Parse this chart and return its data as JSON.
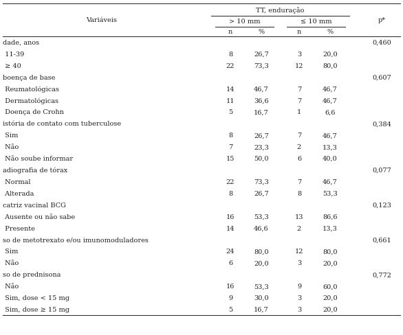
{
  "col_var_label": "Variáveis",
  "col_tt_label": "TT, enduração",
  "col_g1_label": "> 10 mm",
  "col_g2_label": "≤ 10 mm",
  "col_p_label": "p*",
  "col_sub": [
    "n",
    "%",
    "n",
    "%"
  ],
  "rows": [
    {
      "label": "dade, anos",
      "indent": false,
      "n1": "",
      "pct1": "",
      "n2": "",
      "pct2": "",
      "p": "0,460"
    },
    {
      "label": " 11-39",
      "indent": true,
      "n1": "8",
      "pct1": "26,7",
      "n2": "3",
      "pct2": "20,0",
      "p": ""
    },
    {
      "label": " ≥ 40",
      "indent": true,
      "n1": "22",
      "pct1": "73,3",
      "n2": "12",
      "pct2": "80,0",
      "p": ""
    },
    {
      "label": "boença de base",
      "indent": false,
      "n1": "",
      "pct1": "",
      "n2": "",
      "pct2": "",
      "p": "0,607"
    },
    {
      "label": " Reumatológicas",
      "indent": true,
      "n1": "14",
      "pct1": "46,7",
      "n2": "7",
      "pct2": "46,7",
      "p": ""
    },
    {
      "label": " Dermatológicas",
      "indent": true,
      "n1": "11",
      "pct1": "36,6",
      "n2": "7",
      "pct2": "46,7",
      "p": ""
    },
    {
      "label": " Doença de Crohn",
      "indent": true,
      "n1": "5",
      "pct1": "16,7",
      "n2": "1",
      "pct2": "6,6",
      "p": ""
    },
    {
      "label": "istória de contato com tuberculose",
      "indent": false,
      "n1": "",
      "pct1": "",
      "n2": "",
      "pct2": "",
      "p": "0,384"
    },
    {
      "label": " Sim",
      "indent": true,
      "n1": "8",
      "pct1": "26,7",
      "n2": "7",
      "pct2": "46,7",
      "p": ""
    },
    {
      "label": " Não",
      "indent": true,
      "n1": "7",
      "pct1": "23,3",
      "n2": "2",
      "pct2": "13,3",
      "p": ""
    },
    {
      "label": " Não soube informar",
      "indent": true,
      "n1": "15",
      "pct1": "50,0",
      "n2": "6",
      "pct2": "40,0",
      "p": ""
    },
    {
      "label": "adiografia de tórax",
      "indent": false,
      "n1": "",
      "pct1": "",
      "n2": "",
      "pct2": "",
      "p": "0,077"
    },
    {
      "label": " Normal",
      "indent": true,
      "n1": "22",
      "pct1": "73,3",
      "n2": "7",
      "pct2": "46,7",
      "p": ""
    },
    {
      "label": " Alterada",
      "indent": true,
      "n1": "8",
      "pct1": "26,7",
      "n2": "8",
      "pct2": "53,3",
      "p": ""
    },
    {
      "label": "catriz vacinal BCG",
      "indent": false,
      "n1": "",
      "pct1": "",
      "n2": "",
      "pct2": "",
      "p": "0,123"
    },
    {
      "label": " Ausente ou não sabe",
      "indent": true,
      "n1": "16",
      "pct1": "53,3",
      "n2": "13",
      "pct2": "86,6",
      "p": ""
    },
    {
      "label": " Presente",
      "indent": true,
      "n1": "14",
      "pct1": "46,6",
      "n2": "2",
      "pct2": "13,3",
      "p": ""
    },
    {
      "label": "so de metotrexato e/ou imunomoduladores",
      "indent": false,
      "n1": "",
      "pct1": "",
      "n2": "",
      "pct2": "",
      "p": "0,661"
    },
    {
      "label": " Sim",
      "indent": true,
      "n1": "24",
      "pct1": "80,0",
      "n2": "12",
      "pct2": "80,0",
      "p": ""
    },
    {
      "label": " Não",
      "indent": true,
      "n1": "6",
      "pct1": "20,0",
      "n2": "3",
      "pct2": "20,0",
      "p": ""
    },
    {
      "label": "so de prednisona",
      "indent": false,
      "n1": "",
      "pct1": "",
      "n2": "",
      "pct2": "",
      "p": "0,772"
    },
    {
      "label": " Não",
      "indent": true,
      "n1": "16",
      "pct1": "53,3",
      "n2": "9",
      "pct2": "60,0",
      "p": ""
    },
    {
      "label": " Sim, dose < 15 mg",
      "indent": true,
      "n1": "9",
      "pct1": "30,0",
      "n2": "3",
      "pct2": "20,0",
      "p": ""
    },
    {
      "label": " Sim, dose ≥ 15 mg",
      "indent": true,
      "n1": "5",
      "pct1": "16,7",
      "n2": "3",
      "pct2": "20,0",
      "p": ""
    }
  ],
  "font_size": 7.0,
  "bg_color": "#ffffff",
  "text_color": "#231f20",
  "line_color": "#231f20",
  "fig_width": 5.86,
  "fig_height": 4.89,
  "dpi": 100
}
